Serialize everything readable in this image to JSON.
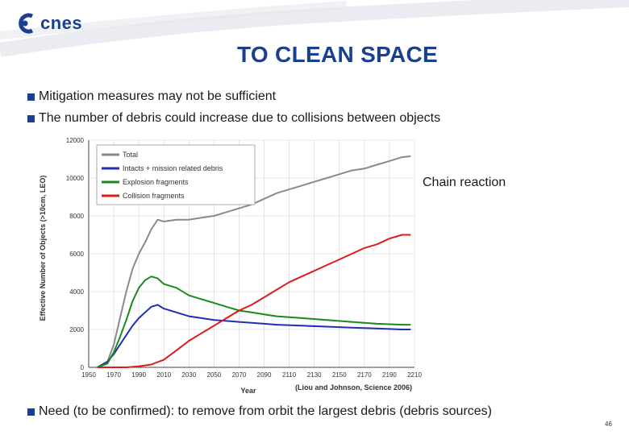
{
  "header": {
    "logo_text": "cnes",
    "title": "TO CLEAN SPACE"
  },
  "bullets": [
    "Mitigation measures may not be sufficient",
    "The number of debris could increase due to collisions between objects",
    "Need (to be confirmed): to remove from orbit the largest debris (debris sources)"
  ],
  "chain_label": "Chain reaction",
  "page_number": "46",
  "colors": {
    "brand": "#1b3f8f",
    "total": "#8a8a8a",
    "intacts": "#1f2fb0",
    "explosion": "#1a8a1a",
    "collision": "#e01a1a"
  },
  "chart_data": {
    "type": "line",
    "xlabel": "Year",
    "ylabel": "Effective Number of Objects (>10cm, LEO)",
    "xlim": [
      1950,
      2210
    ],
    "ylim": [
      0,
      12000
    ],
    "x_ticks": [
      "1950",
      "1970",
      "1990",
      "2010",
      "2030",
      "2050",
      "2070",
      "2090",
      "2110",
      "2130",
      "2150",
      "2170",
      "2190",
      "2210"
    ],
    "y_ticks": [
      "0",
      "2000",
      "4000",
      "6000",
      "8000",
      "10000",
      "12000"
    ],
    "legend_position": "top-left",
    "annotation": "(Liou and Johnson, Science 2006)",
    "series": [
      {
        "name": "Total",
        "x": [
          1957,
          1965,
          1970,
          1975,
          1980,
          1985,
          1990,
          1995,
          2000,
          2005,
          2010,
          2020,
          2030,
          2040,
          2050,
          2060,
          2070,
          2080,
          2090,
          2100,
          2110,
          2120,
          2130,
          2140,
          2150,
          2160,
          2170,
          2180,
          2190,
          2200,
          2207
        ],
        "y": [
          0,
          300,
          1200,
          2600,
          4000,
          5200,
          6000,
          6600,
          7300,
          7800,
          7700,
          7800,
          7800,
          7900,
          8000,
          8200,
          8400,
          8600,
          8900,
          9200,
          9400,
          9600,
          9800,
          10000,
          10200,
          10400,
          10500,
          10700,
          10900,
          11100,
          11150
        ]
      },
      {
        "name": "Intacts + mission related debris",
        "x": [
          1957,
          1965,
          1970,
          1975,
          1980,
          1985,
          1990,
          1995,
          2000,
          2005,
          2010,
          2020,
          2030,
          2040,
          2050,
          2060,
          2070,
          2080,
          2090,
          2100,
          2120,
          2140,
          2160,
          2180,
          2200,
          2207
        ],
        "y": [
          0,
          300,
          700,
          1200,
          1700,
          2200,
          2600,
          2900,
          3200,
          3300,
          3100,
          2900,
          2700,
          2600,
          2500,
          2450,
          2400,
          2350,
          2300,
          2250,
          2200,
          2150,
          2100,
          2050,
          2000,
          2000
        ]
      },
      {
        "name": "Explosion fragments",
        "x": [
          1957,
          1965,
          1970,
          1975,
          1980,
          1985,
          1990,
          1995,
          2000,
          2005,
          2010,
          2020,
          2030,
          2040,
          2050,
          2060,
          2070,
          2080,
          2090,
          2100,
          2120,
          2140,
          2160,
          2180,
          2200,
          2207
        ],
        "y": [
          0,
          200,
          800,
          1600,
          2500,
          3500,
          4200,
          4600,
          4800,
          4700,
          4400,
          4200,
          3800,
          3600,
          3400,
          3200,
          3000,
          2900,
          2800,
          2700,
          2600,
          2500,
          2400,
          2300,
          2250,
          2250
        ]
      },
      {
        "name": "Collision fragments",
        "x": [
          1957,
          1980,
          1990,
          2000,
          2010,
          2020,
          2030,
          2040,
          2050,
          2060,
          2070,
          2080,
          2090,
          2100,
          2110,
          2120,
          2130,
          2140,
          2150,
          2160,
          2170,
          2180,
          2190,
          2200,
          2207
        ],
        "y": [
          0,
          0,
          50,
          150,
          400,
          900,
          1400,
          1800,
          2200,
          2600,
          3000,
          3300,
          3700,
          4100,
          4500,
          4800,
          5100,
          5400,
          5700,
          6000,
          6300,
          6500,
          6800,
          7000,
          7000
        ]
      }
    ]
  }
}
